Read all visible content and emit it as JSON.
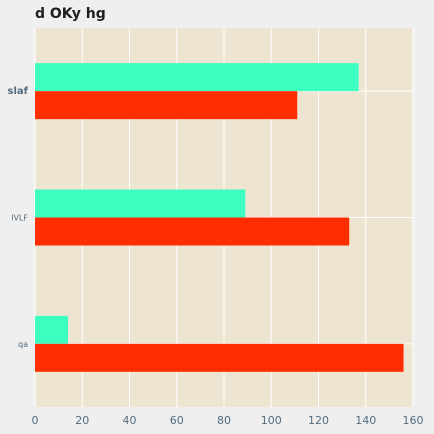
{
  "chart_data": {
    "type": "bar",
    "orientation": "horizontal",
    "title": "d OKy hg",
    "xlabel": "",
    "ylabel": "",
    "categories": [
      "slaf",
      "lVLF",
      "qa"
    ],
    "category_label_styles": [
      "bold",
      "normal",
      "normal"
    ],
    "series": [
      {
        "values": [
          137,
          89,
          14
        ],
        "color": "#3dffbf"
      },
      {
        "values": [
          111,
          133,
          156
        ],
        "color": "#ff2d00"
      }
    ],
    "xlim": [
      0,
      160
    ],
    "xticks": [
      0,
      20,
      40,
      60,
      80,
      100,
      120,
      140,
      160
    ],
    "grid": true,
    "legend": "none",
    "plot_background": "#ede5d2",
    "page_background": "#efefef",
    "grid_color": "#ffffff"
  }
}
